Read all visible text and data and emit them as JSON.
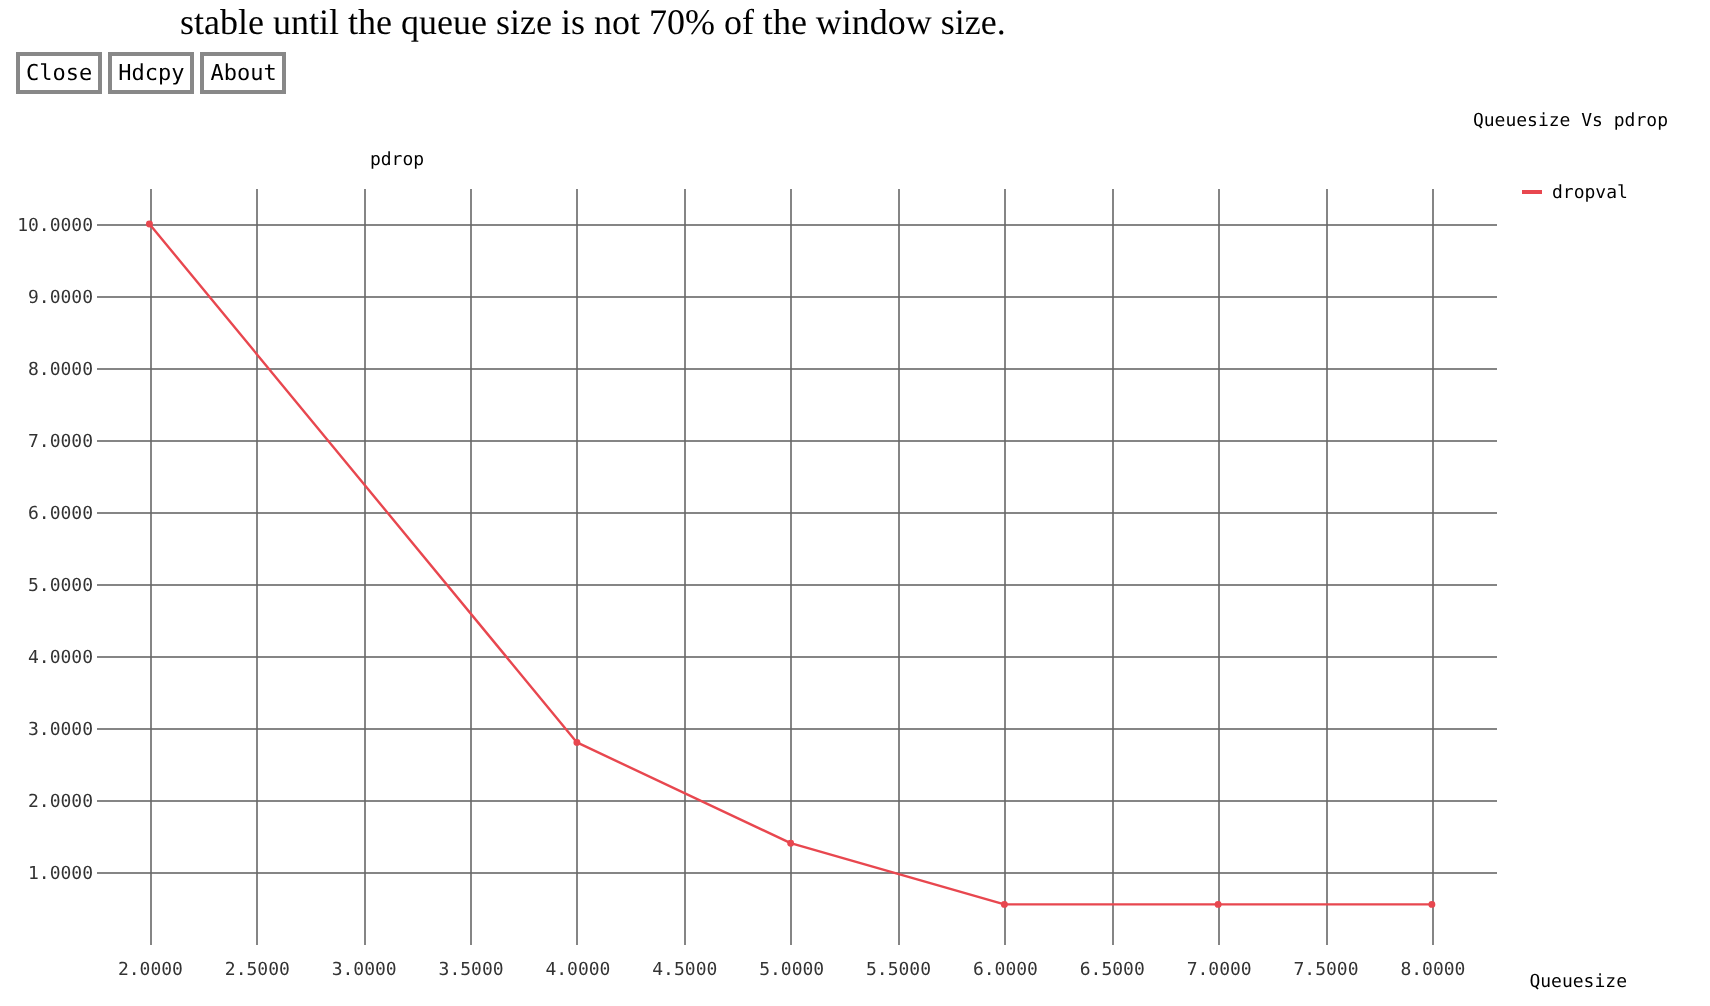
{
  "chart_data": {
    "type": "line",
    "title": "Queuesize Vs pdrop",
    "xlabel": "Queuesize",
    "ylabel": "pdrop",
    "annotations": [
      "stable until the queue size is not 70% of the window size.",
      "Close",
      "Hdcpy",
      "About"
    ],
    "x": [
      2,
      4,
      5,
      6,
      7,
      8
    ],
    "series": [
      {
        "name": "dropval",
        "color": "#e8474f",
        "values": [
          10.0,
          2.8,
          1.4,
          0.55,
          0.55,
          0.55
        ]
      }
    ],
    "xlim": [
      1.75,
      8.3
    ],
    "ylim": [
      0,
      10.5
    ],
    "xticks": [
      {
        "value": 2,
        "label": "2.0000"
      },
      {
        "value": 2.5,
        "label": "2.5000"
      },
      {
        "value": 3,
        "label": "3.0000"
      },
      {
        "value": 3.5,
        "label": "3.5000"
      },
      {
        "value": 4,
        "label": "4.0000"
      },
      {
        "value": 4.5,
        "label": "4.5000"
      },
      {
        "value": 5,
        "label": "5.0000"
      },
      {
        "value": 5.5,
        "label": "5.5000"
      },
      {
        "value": 6,
        "label": "6.0000"
      },
      {
        "value": 6.5,
        "label": "6.5000"
      },
      {
        "value": 7,
        "label": "7.0000"
      },
      {
        "value": 7.5,
        "label": "7.5000"
      },
      {
        "value": 8,
        "label": "8.0000"
      }
    ],
    "yticks": [
      {
        "value": 1,
        "label": "1.0000"
      },
      {
        "value": 2,
        "label": "2.0000"
      },
      {
        "value": 3,
        "label": "3.0000"
      },
      {
        "value": 4,
        "label": "4.0000"
      },
      {
        "value": 5,
        "label": "5.0000"
      },
      {
        "value": 6,
        "label": "6.0000"
      },
      {
        "value": 7,
        "label": "7.0000"
      },
      {
        "value": 8,
        "label": "8.0000"
      },
      {
        "value": 9,
        "label": "9.0000"
      },
      {
        "value": 10,
        "label": "10.0000"
      }
    ],
    "grid": true,
    "legend": "top right",
    "marker": "circle",
    "line_style": "solid"
  }
}
